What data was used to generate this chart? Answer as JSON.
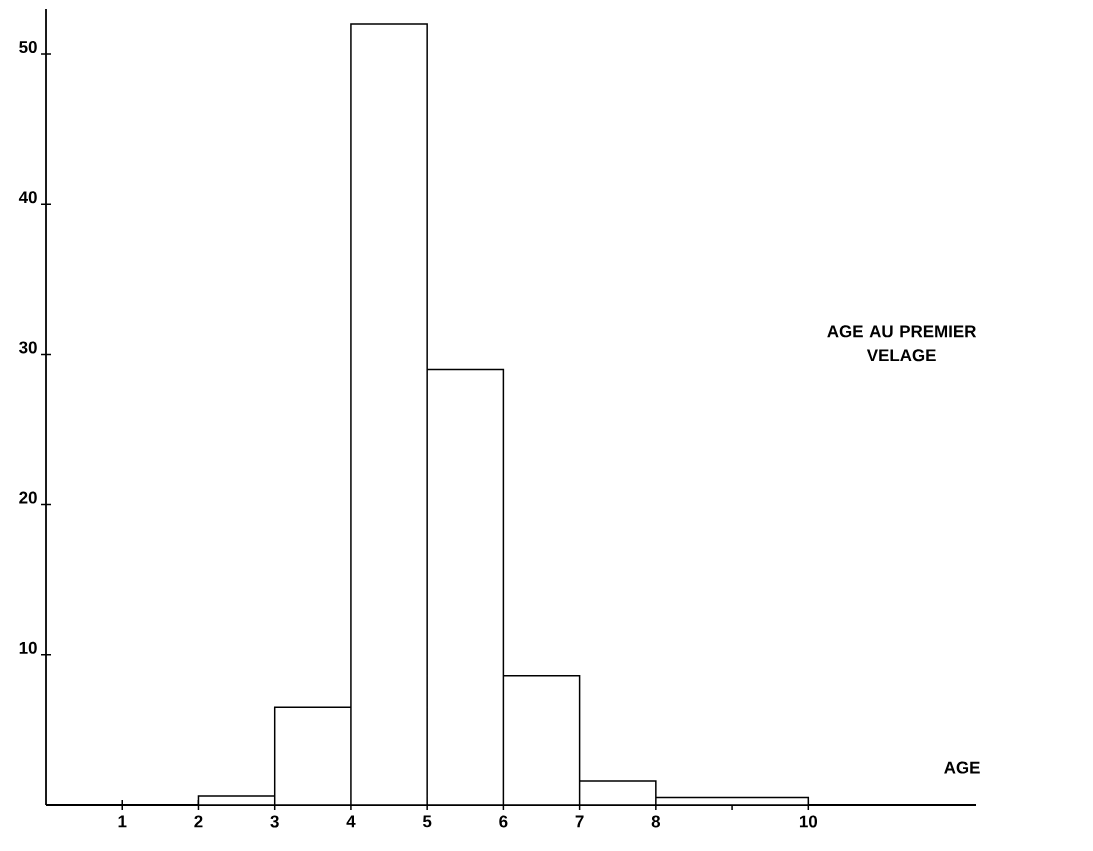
{
  "chart_data": {
    "type": "histogram",
    "title": "AGE AU PREMIER VELAGE",
    "xlabel": "AGE",
    "bins": [
      2,
      3,
      4,
      5,
      6,
      7,
      8,
      10
    ],
    "values": [
      0.6,
      6.5,
      52,
      29,
      8.6,
      1.6,
      0.5
    ],
    "color": "#ffffff",
    "xlim": [
      0,
      12.2
    ],
    "ylim": [
      0,
      53
    ],
    "xticks": [
      1,
      2,
      3,
      4,
      5,
      6,
      7,
      8,
      {
        "value": 9,
        "label": null
      },
      10
    ],
    "yticks": [
      10,
      20,
      30,
      40,
      50
    ],
    "grid": false
  }
}
